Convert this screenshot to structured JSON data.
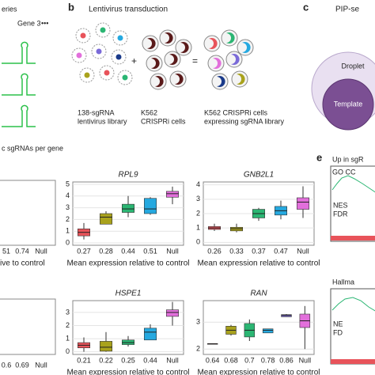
{
  "panels": {
    "a_partial": {
      "title": "eries",
      "gene": "Gene 3",
      "caption": "c sgRNAs per gene"
    },
    "b": {
      "letter": "b",
      "title": "Lentivirus transduction",
      "plus": "+",
      "equals": "=",
      "labels": [
        [
          "138-sgRNA",
          "lentivirus library"
        ],
        [
          "K562",
          "CRISPRi cells"
        ],
        [
          "K562 CRISPRi cells",
          "expressing sgRNA library"
        ]
      ]
    },
    "c": {
      "letter": "c",
      "title": "PIP-se",
      "outer": "Droplet",
      "inner": "Template"
    },
    "e": {
      "letter": "e",
      "title": "Up in sgR",
      "top": {
        "name": "GO CC",
        "stats": [
          "NES",
          "FDR"
        ]
      },
      "bottom": {
        "name": "Hallma",
        "stats": [
          "NE",
          "FD"
        ]
      }
    },
    "left_partial": {
      "top_ticks": [
        "51",
        "0.74",
        "Null"
      ],
      "top_xlabel": "ive to control",
      "bottom_ticks": [
        "0.6",
        "0.69",
        "Null"
      ]
    }
  },
  "chart_data": [
    {
      "type": "box",
      "title": "RPL9",
      "x_label": "Mean expression relative to control",
      "categories": [
        "0.27",
        "0.28",
        "0.44",
        "0.51",
        "Null"
      ],
      "colors": [
        "#e8535a",
        "#a9a21c",
        "#2bb673",
        "#25a9e0",
        "#e26fdb"
      ],
      "boxes": [
        {
          "low": 0.3,
          "q1": 0.6,
          "median": 0.9,
          "q3": 1.2,
          "high": 1.7
        },
        {
          "low": 1.6,
          "q1": 1.6,
          "median": 2.2,
          "q3": 2.5,
          "high": 2.7
        },
        {
          "low": 2.2,
          "q1": 2.6,
          "median": 2.9,
          "q3": 3.3,
          "high": 4.0
        },
        {
          "low": 2.4,
          "q1": 2.5,
          "median": 2.9,
          "q3": 3.8,
          "high": 3.9
        },
        {
          "low": 3.3,
          "q1": 3.9,
          "median": 4.2,
          "q3": 4.4,
          "high": 4.8
        }
      ],
      "ylim": [
        -0.2,
        5.2
      ],
      "yticks": [
        0,
        1,
        2,
        3,
        4,
        5
      ]
    },
    {
      "type": "box",
      "title": "GNB2L1",
      "x_label": "Mean expression relative to control",
      "categories": [
        "0.26",
        "0.33",
        "0.37",
        "0.47",
        "Null"
      ],
      "colors": [
        "#e8535a",
        "#a9a21c",
        "#2bb673",
        "#25a9e0",
        "#e26fdb"
      ],
      "boxes": [
        {
          "low": 0.8,
          "q1": 0.9,
          "median": 1.0,
          "q3": 1.1,
          "high": 1.3
        },
        {
          "low": 0.7,
          "q1": 0.8,
          "median": 0.95,
          "q3": 1.05,
          "high": 1.3
        },
        {
          "low": 1.5,
          "q1": 1.7,
          "median": 2.0,
          "q3": 2.3,
          "high": 2.4
        },
        {
          "low": 1.6,
          "q1": 1.9,
          "median": 2.2,
          "q3": 2.5,
          "high": 2.9
        },
        {
          "low": 1.7,
          "q1": 2.3,
          "median": 2.8,
          "q3": 3.1,
          "high": 3.9
        }
      ],
      "ylim": [
        -0.2,
        4.2
      ],
      "yticks": [
        0,
        1,
        2,
        3,
        4
      ]
    },
    {
      "type": "box",
      "title": "HSPE1",
      "x_label": "Mean expression relative to control",
      "categories": [
        "0.21",
        "0.22",
        "0.25",
        "0.44",
        "Null"
      ],
      "colors": [
        "#e8535a",
        "#a9a21c",
        "#2bb673",
        "#25a9e0",
        "#e26fdb"
      ],
      "boxes": [
        {
          "low": 0.0,
          "q1": 0.3,
          "median": 0.5,
          "q3": 0.7,
          "high": 1.1
        },
        {
          "low": 0.0,
          "q1": 0.05,
          "median": 0.35,
          "q3": 0.8,
          "high": 1.5
        },
        {
          "low": 0.4,
          "q1": 0.55,
          "median": 0.7,
          "q3": 0.9,
          "high": 1.2
        },
        {
          "low": 0.9,
          "q1": 0.9,
          "median": 1.5,
          "q3": 1.8,
          "high": 2.1
        },
        {
          "low": 2.0,
          "q1": 2.7,
          "median": 3.0,
          "q3": 3.2,
          "high": 3.8
        }
      ],
      "ylim": [
        -0.2,
        3.9
      ],
      "yticks": [
        0,
        1,
        2,
        3
      ]
    },
    {
      "type": "box",
      "title": "RAN",
      "x_label": "Mean expression relative to control",
      "categories": [
        "0.64",
        "0.68",
        "0.7",
        "0.78",
        "0.86",
        "Null"
      ],
      "colors": [
        "#e8535a",
        "#a9a21c",
        "#2bb673",
        "#25a9e0",
        "#7a6ad8",
        "#e26fdb"
      ],
      "boxes": [
        {
          "low": 2.2,
          "q1": 2.2,
          "median": 2.2,
          "q3": 2.2,
          "high": 2.2
        },
        {
          "low": 2.5,
          "q1": 2.55,
          "median": 2.7,
          "q3": 2.85,
          "high": 2.9
        },
        {
          "low": 2.3,
          "q1": 2.45,
          "median": 2.7,
          "q3": 2.95,
          "high": 3.1
        },
        {
          "low": 2.6,
          "q1": 2.6,
          "median": 2.7,
          "q3": 2.75,
          "high": 2.75
        },
        {
          "low": 3.2,
          "q1": 3.2,
          "median": 3.25,
          "q3": 3.28,
          "high": 3.3
        },
        {
          "low": 2.0,
          "q1": 2.8,
          "median": 3.05,
          "q3": 3.3,
          "high": 3.6
        }
      ],
      "ylim": [
        1.8,
        3.8
      ],
      "yticks": [
        2,
        3
      ]
    }
  ]
}
